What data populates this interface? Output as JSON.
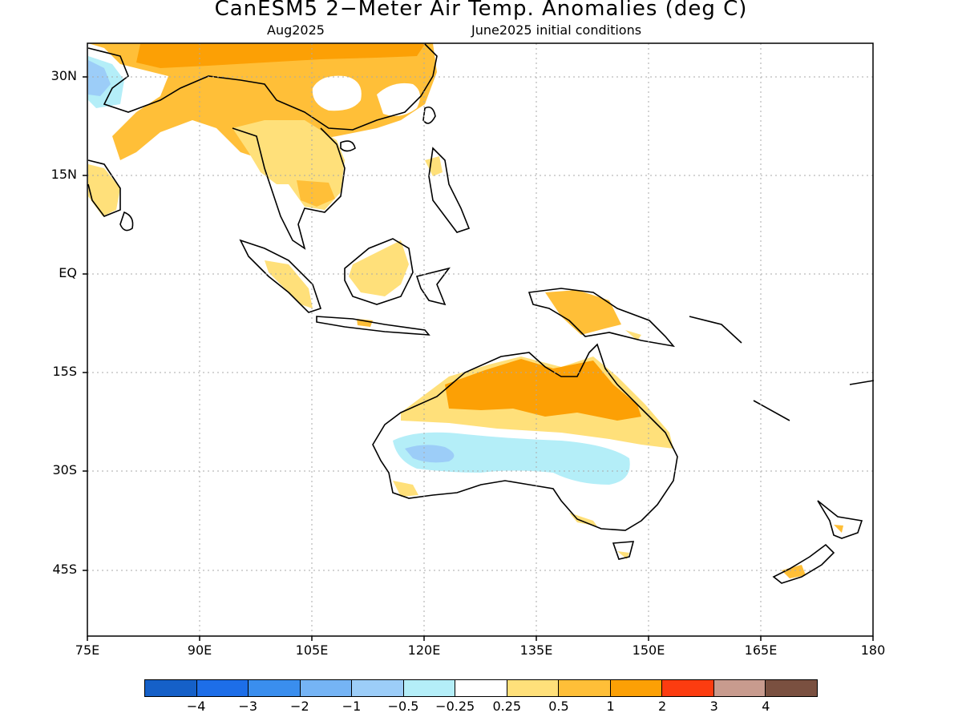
{
  "title": "CanESM5 2−Meter Air Temp. Anomalies (deg C)",
  "subtitle_left": "Aug2025",
  "subtitle_right": "June2025 initial conditions",
  "y_ticks": [
    {
      "label": "30N",
      "lat": 30
    },
    {
      "label": "15N",
      "lat": 15
    },
    {
      "label": "EQ",
      "lat": 0
    },
    {
      "label": "15S",
      "lat": -15
    },
    {
      "label": "30S",
      "lat": -30
    },
    {
      "label": "45S",
      "lat": -45
    }
  ],
  "x_ticks": [
    {
      "label": "75E",
      "lon": 75
    },
    {
      "label": "90E",
      "lon": 90
    },
    {
      "label": "105E",
      "lon": 105
    },
    {
      "label": "120E",
      "lon": 120
    },
    {
      "label": "135E",
      "lon": 135
    },
    {
      "label": "150E",
      "lon": 150
    },
    {
      "label": "165E",
      "lon": 165
    },
    {
      "label": "180",
      "lon": 180
    }
  ],
  "colorbar": {
    "colors": [
      "#1560c8",
      "#1d6ee8",
      "#3a8eee",
      "#75b4f5",
      "#9ccdf8",
      "#b4eef8",
      "#ffffff",
      "#ffe07a",
      "#ffbf38",
      "#fca005",
      "#fc3c10",
      "#c89b8e",
      "#7a5040"
    ],
    "labels": [
      "−4",
      "−3",
      "−2",
      "−1",
      "−0.5",
      "−0.25",
      "0.25",
      "0.5",
      "1",
      "2",
      "3",
      "4"
    ]
  },
  "map_colors": {
    "orange": "#fca005",
    "light_orange": "#ffbf38",
    "yellow": "#ffe07a",
    "cyan": "#b4eef8",
    "light_blue": "#9ccdf8",
    "coast": "#000000",
    "grid": "#aaaaaa"
  },
  "map_extent": {
    "lon_min": 75,
    "lon_max": 180,
    "lat_min": -52,
    "lat_max": 35
  }
}
